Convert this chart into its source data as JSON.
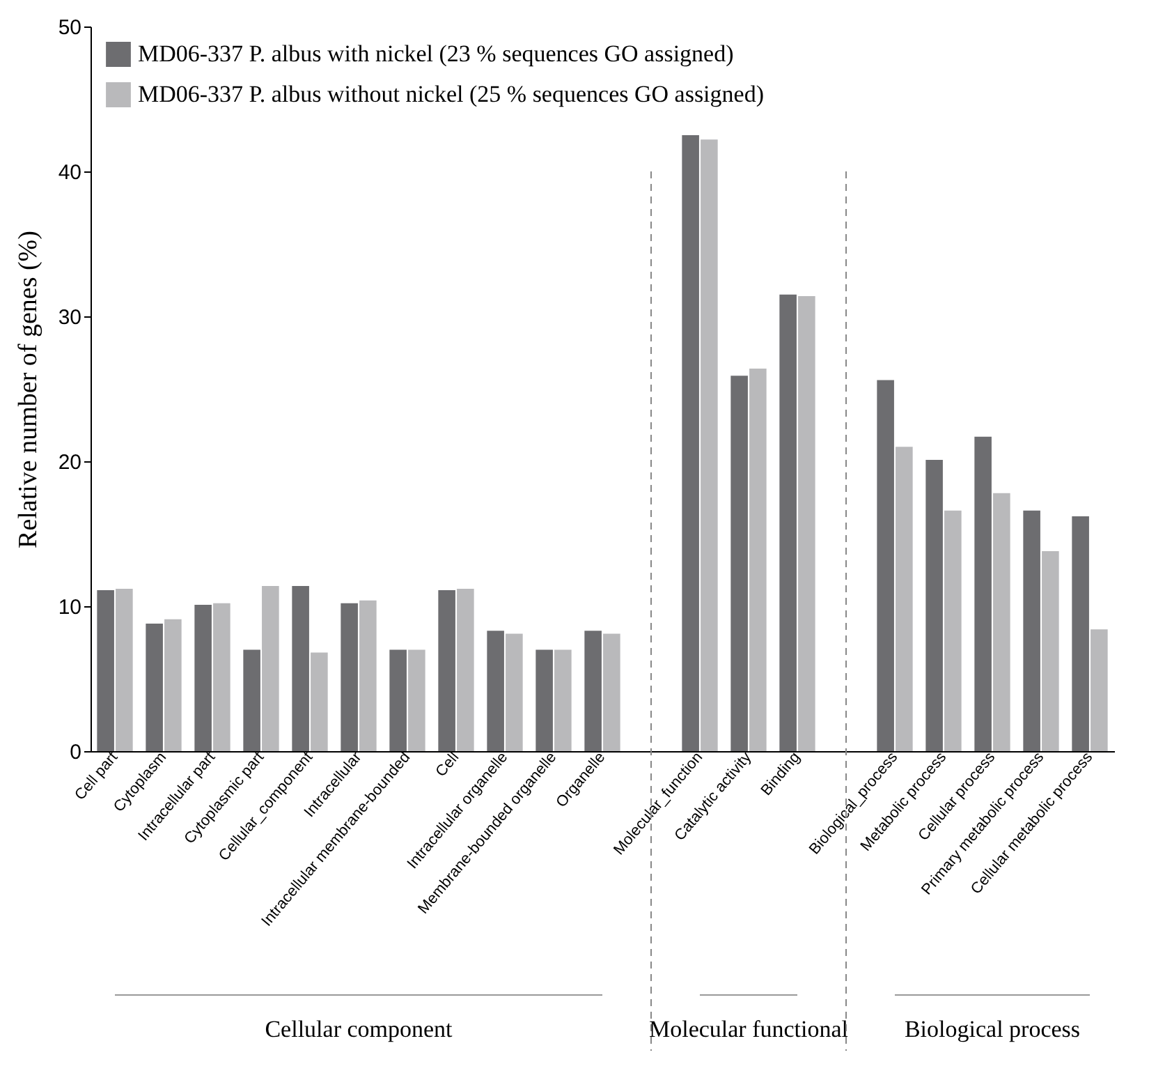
{
  "chart_data": {
    "type": "bar",
    "ylabel": "Relative number of genes (%)",
    "categories": [
      "Cell part",
      "Cytoplasm",
      "Intracellular part",
      "Cytoplasmic part",
      "Cellular_component",
      "Intracellular",
      "Intracellular membrane-bounded",
      "Cell",
      "Intracellular organelle",
      "Membrane-bounded organelle",
      "Organelle",
      null,
      "Molecular_function",
      "Catalytic activity",
      "Binding",
      null,
      "Biological_process",
      "Metabolic process",
      "Cellular process",
      "Primary metabolic process",
      "Cellular metabolic process"
    ],
    "series": [
      {
        "name": "MD06-337 P. albus with nickel (23 % sequences GO assigned)",
        "color": "#6d6d70",
        "values": [
          11.1,
          8.8,
          10.1,
          7.0,
          11.4,
          10.2,
          7.0,
          11.1,
          8.3,
          7.0,
          8.3,
          null,
          42.5,
          25.9,
          31.5,
          null,
          25.6,
          20.1,
          21.7,
          16.6,
          16.2
        ]
      },
      {
        "name": "MD06-337 P. albus without nickel (25 % sequences GO assigned)",
        "color": "#b9b9bb",
        "values": [
          11.2,
          9.1,
          10.2,
          11.4,
          6.8,
          10.4,
          7.0,
          11.2,
          8.1,
          7.0,
          8.1,
          null,
          42.2,
          26.4,
          31.4,
          null,
          21.0,
          16.6,
          17.8,
          13.8,
          8.4
        ]
      }
    ],
    "ylim": [
      0,
      50
    ],
    "yticks": [
      0,
      10,
      20,
      30,
      40,
      50
    ],
    "legend": "top left",
    "annotations": [
      "Cellular component",
      "Molecular functional",
      "Biological process"
    ]
  }
}
